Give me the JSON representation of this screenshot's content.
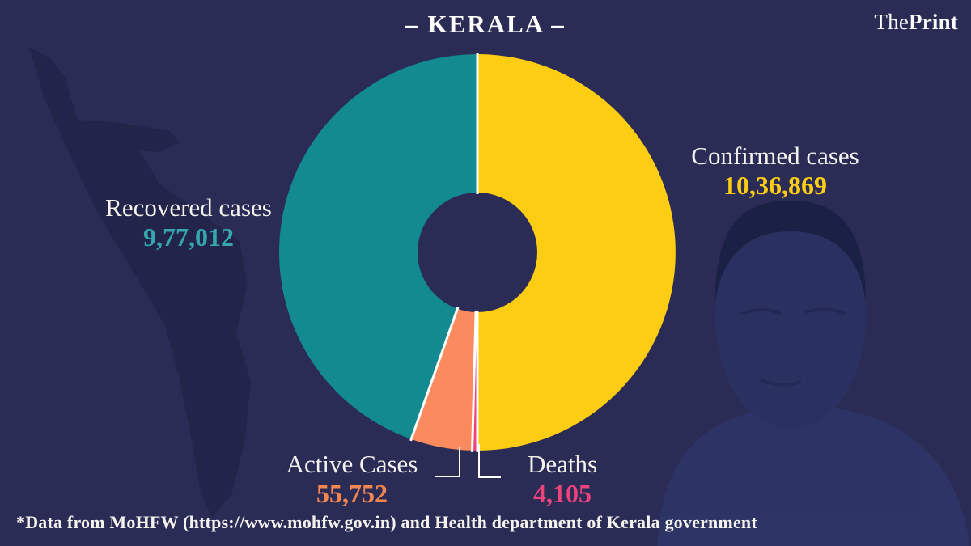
{
  "page": {
    "title": "– KERALA –",
    "brand": {
      "the": "The",
      "print": "Print"
    },
    "footer": "*Data from MoHFW (https://www.mohfw.gov.in) and Health department of Kerala government",
    "background_color": "#2A2C56"
  },
  "chart_data": {
    "type": "pie",
    "subtype": "donut",
    "title": "– KERALA –",
    "unit": "cases",
    "total": 1036869,
    "inner_radius_ratio": 0.3,
    "grid": false,
    "legend_position": "labels-around-chart",
    "slices": [
      {
        "label": "Confirmed cases",
        "value": 1036869,
        "display": "10,36,869",
        "color": "#FDCD13",
        "text_color": "#FDCD13",
        "start_angle": 0,
        "end_angle": 180
      },
      {
        "label": "Deaths",
        "value": 4105,
        "display": "4,105",
        "color": "#F0437E",
        "text_color": "#F0437E",
        "start_angle": 180,
        "end_angle": 181.5
      },
      {
        "label": "Active Cases",
        "value": 55752,
        "display": "55,752",
        "color": "#FB8A5E",
        "text_color": "#F6864F",
        "start_angle": 181.5,
        "end_angle": 199.5
      },
      {
        "label": "Recovered cases",
        "value": 977012,
        "display": "9,77,012",
        "color": "#128A90",
        "text_color": "#35A6AE",
        "start_angle": 199.5,
        "end_angle": 360
      }
    ]
  }
}
